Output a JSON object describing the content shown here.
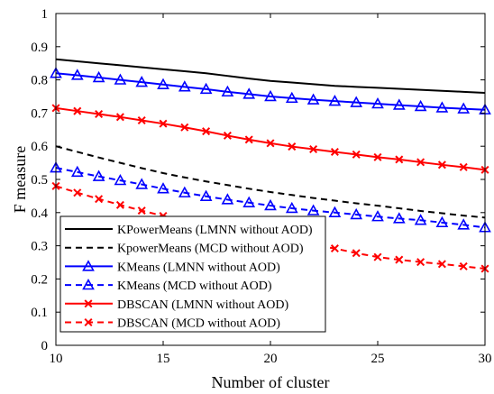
{
  "chart_data": {
    "type": "line",
    "xlabel": "Number of cluster",
    "ylabel": "F measure",
    "xlim": [
      10,
      30
    ],
    "ylim": [
      0,
      1
    ],
    "xticks": [
      10,
      15,
      20,
      25,
      30
    ],
    "yticks": [
      0,
      0.1,
      0.2,
      0.3,
      0.4,
      0.5,
      0.6,
      0.7,
      0.8,
      0.9,
      1
    ],
    "grid": false,
    "legend_position": "bottom-left",
    "series": [
      {
        "name": "KPowerMeans (LMNN without AOD)",
        "color": "#000000",
        "dash": "solid",
        "marker": "none",
        "x": [
          10,
          11,
          12,
          13,
          14,
          15,
          16,
          17,
          18,
          19,
          20,
          21,
          22,
          23,
          24,
          25,
          26,
          27,
          28,
          29,
          30
        ],
        "y": [
          0.862,
          0.856,
          0.85,
          0.844,
          0.838,
          0.832,
          0.826,
          0.82,
          0.812,
          0.804,
          0.797,
          0.792,
          0.787,
          0.782,
          0.779,
          0.776,
          0.773,
          0.77,
          0.767,
          0.764,
          0.761
        ]
      },
      {
        "name": "KpowerMeans (MCD without AOD)",
        "color": "#000000",
        "dash": "dashed",
        "marker": "none",
        "x": [
          10,
          11,
          12,
          13,
          14,
          15,
          16,
          17,
          18,
          19,
          20,
          21,
          22,
          23,
          24,
          25,
          26,
          27,
          28,
          29,
          30
        ],
        "y": [
          0.6,
          0.583,
          0.566,
          0.55,
          0.534,
          0.519,
          0.506,
          0.494,
          0.483,
          0.472,
          0.462,
          0.453,
          0.444,
          0.436,
          0.428,
          0.421,
          0.413,
          0.405,
          0.398,
          0.391,
          0.385
        ]
      },
      {
        "name": "KMeans (LMNN without AOD)",
        "color": "#0000ff",
        "dash": "solid",
        "marker": "triangle",
        "x": [
          10,
          11,
          12,
          13,
          14,
          15,
          16,
          17,
          18,
          19,
          20,
          21,
          22,
          23,
          24,
          25,
          26,
          27,
          28,
          29,
          30
        ],
        "y": [
          0.82,
          0.814,
          0.807,
          0.8,
          0.793,
          0.786,
          0.779,
          0.772,
          0.764,
          0.757,
          0.75,
          0.745,
          0.74,
          0.736,
          0.732,
          0.728,
          0.724,
          0.72,
          0.716,
          0.713,
          0.71
        ]
      },
      {
        "name": "KMeans  (MCD without AOD)",
        "color": "#0000ff",
        "dash": "dashed",
        "marker": "triangle",
        "x": [
          10,
          11,
          12,
          13,
          14,
          15,
          16,
          17,
          18,
          19,
          20,
          21,
          22,
          23,
          24,
          25,
          26,
          27,
          28,
          29,
          30
        ],
        "y": [
          0.535,
          0.522,
          0.509,
          0.497,
          0.485,
          0.472,
          0.46,
          0.449,
          0.439,
          0.43,
          0.421,
          0.413,
          0.406,
          0.4,
          0.394,
          0.388,
          0.382,
          0.377,
          0.37,
          0.363,
          0.355
        ]
      },
      {
        "name": "DBSCAN (LMNN without AOD)",
        "color": "#ff0000",
        "dash": "solid",
        "marker": "x",
        "x": [
          10,
          11,
          12,
          13,
          14,
          15,
          16,
          17,
          18,
          19,
          20,
          21,
          22,
          23,
          24,
          25,
          26,
          27,
          28,
          29,
          30
        ],
        "y": [
          0.715,
          0.706,
          0.697,
          0.688,
          0.678,
          0.668,
          0.657,
          0.645,
          0.632,
          0.62,
          0.609,
          0.599,
          0.591,
          0.583,
          0.575,
          0.567,
          0.56,
          0.552,
          0.544,
          0.537,
          0.529
        ]
      },
      {
        "name": "DBSCAN  (MCD without AOD)",
        "color": "#ff0000",
        "dash": "dashed",
        "marker": "x",
        "x": [
          10,
          11,
          12,
          13,
          14,
          15,
          16,
          17,
          18,
          19,
          20,
          21,
          22,
          23,
          24,
          25,
          26,
          27,
          28,
          29,
          30
        ],
        "y": [
          0.48,
          0.46,
          0.441,
          0.423,
          0.406,
          0.39,
          0.375,
          0.362,
          0.349,
          0.337,
          0.324,
          0.312,
          0.302,
          0.292,
          0.278,
          0.266,
          0.258,
          0.251,
          0.245,
          0.238,
          0.231
        ]
      }
    ]
  }
}
